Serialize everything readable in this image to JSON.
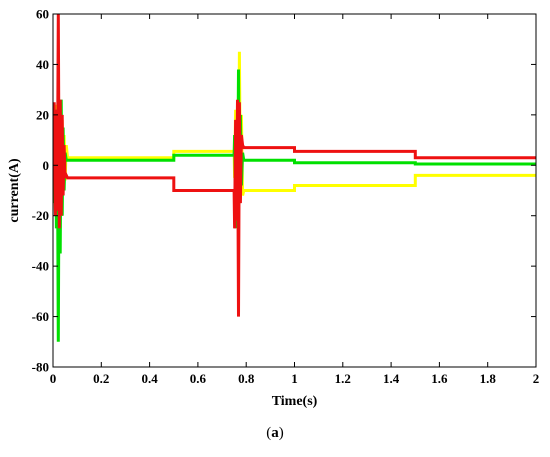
{
  "caption": {
    "open": "(",
    "letter": "a",
    "close": ")"
  },
  "chart_data": {
    "type": "line",
    "xlabel": "Time(s)",
    "ylabel": "current(A)",
    "xlim": [
      0,
      2
    ],
    "ylim": [
      -80,
      60
    ],
    "xticks": [
      0,
      0.2,
      0.4,
      0.6,
      0.8,
      1,
      1.2,
      1.4,
      1.6,
      1.8,
      2
    ],
    "xtick_labels": [
      "0",
      "0.2",
      "0.4",
      "0.6",
      "0.8",
      "1",
      "1.2",
      "1.4",
      "1.6",
      "1.8",
      "2"
    ],
    "yticks": [
      -80,
      -60,
      -40,
      -20,
      0,
      20,
      40,
      60
    ],
    "ytick_labels": [
      "-80",
      "-60",
      "-40",
      "-20",
      "0",
      "20",
      "40",
      "60"
    ],
    "grid": false,
    "series": [
      {
        "color": "#ffff00",
        "x": [
          0,
          0.005,
          0.01,
          0.014,
          0.018,
          0.022,
          0.026,
          0.03,
          0.034,
          0.038,
          0.042,
          0.046,
          0.05,
          0.055,
          0.06,
          0.5,
          0.5,
          0.75,
          0.752,
          0.756,
          0.76,
          0.764,
          0.768,
          0.772,
          0.776,
          0.78,
          0.785,
          0.79,
          1.0,
          1.0,
          1.5,
          1.5,
          2.0
        ],
        "y": [
          0,
          15,
          -18,
          24,
          -20,
          20,
          -15,
          25,
          -12,
          18,
          -10,
          12,
          -6,
          8,
          3,
          3,
          5.5,
          5.5,
          -5,
          22,
          -22,
          25,
          -15,
          45,
          -10,
          20,
          -12,
          -10,
          -10,
          -8,
          -8,
          -4,
          -4
        ]
      },
      {
        "color": "#00e000",
        "x": [
          0,
          0.005,
          0.01,
          0.014,
          0.018,
          0.022,
          0.026,
          0.03,
          0.034,
          0.038,
          0.042,
          0.046,
          0.05,
          0.055,
          0.06,
          0.5,
          0.5,
          0.75,
          0.752,
          0.756,
          0.76,
          0.764,
          0.768,
          0.772,
          0.776,
          0.78,
          0.785,
          0.79,
          1.0,
          1.0,
          1.5,
          1.5,
          2.0
        ],
        "y": [
          0,
          -15,
          22,
          -25,
          18,
          -70,
          25,
          -35,
          26,
          -20,
          15,
          -10,
          5,
          2,
          2,
          2,
          4,
          4,
          12,
          -25,
          18,
          -20,
          38,
          -15,
          20,
          -8,
          5,
          2,
          2,
          1,
          1,
          0.5,
          0.5
        ]
      },
      {
        "color": "#ee1111",
        "x": [
          0,
          0.005,
          0.01,
          0.014,
          0.018,
          0.022,
          0.026,
          0.03,
          0.034,
          0.038,
          0.042,
          0.046,
          0.05,
          0.055,
          0.06,
          0.5,
          0.5,
          0.75,
          0.752,
          0.756,
          0.76,
          0.764,
          0.768,
          0.772,
          0.776,
          0.78,
          0.785,
          0.79,
          1.0,
          1.0,
          1.5,
          1.5,
          2.0
        ],
        "y": [
          0,
          25,
          -20,
          22,
          -18,
          60,
          -25,
          26,
          -20,
          20,
          -12,
          8,
          -5,
          -4,
          -5,
          -5,
          -10,
          -10,
          -25,
          18,
          -22,
          26,
          -60,
          25,
          -15,
          12,
          8,
          7,
          7,
          5.5,
          5.5,
          3,
          3
        ]
      }
    ]
  }
}
